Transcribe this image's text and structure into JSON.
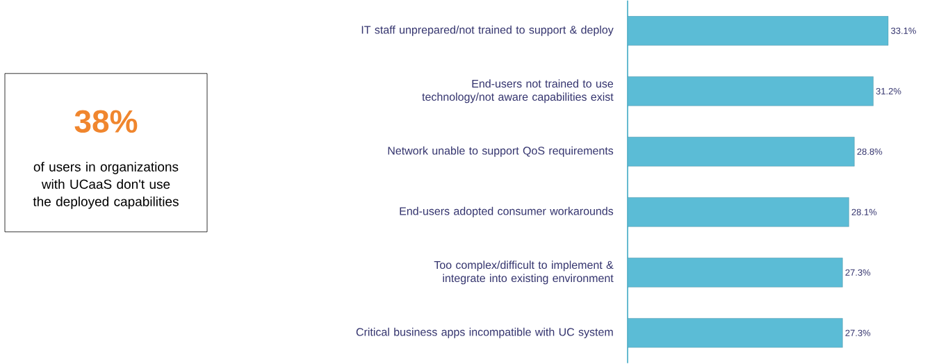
{
  "chart_data": {
    "type": "bar",
    "orientation": "horizontal",
    "categories": [
      "IT staff unprepared/not trained to support & deploy",
      "End-users not trained to use technology/not aware capabilities exist",
      "Network unable to support QoS requirements",
      "End-users adopted consumer workarounds",
      "Too complex/difficult to implement & integrate into existing environment",
      "Critical business apps incompatible with UC system"
    ],
    "values": [
      33.1,
      31.2,
      28.8,
      28.1,
      27.3,
      27.3
    ],
    "value_labels": [
      "33.1%",
      "31.2%",
      "28.8%",
      "28.1%",
      "27.3%",
      "27.3%"
    ],
    "color": "#5bbcd6",
    "annotations": [
      "38%",
      "of users in organizations with UCaaS don't use the deployed capabilities"
    ]
  }
}
